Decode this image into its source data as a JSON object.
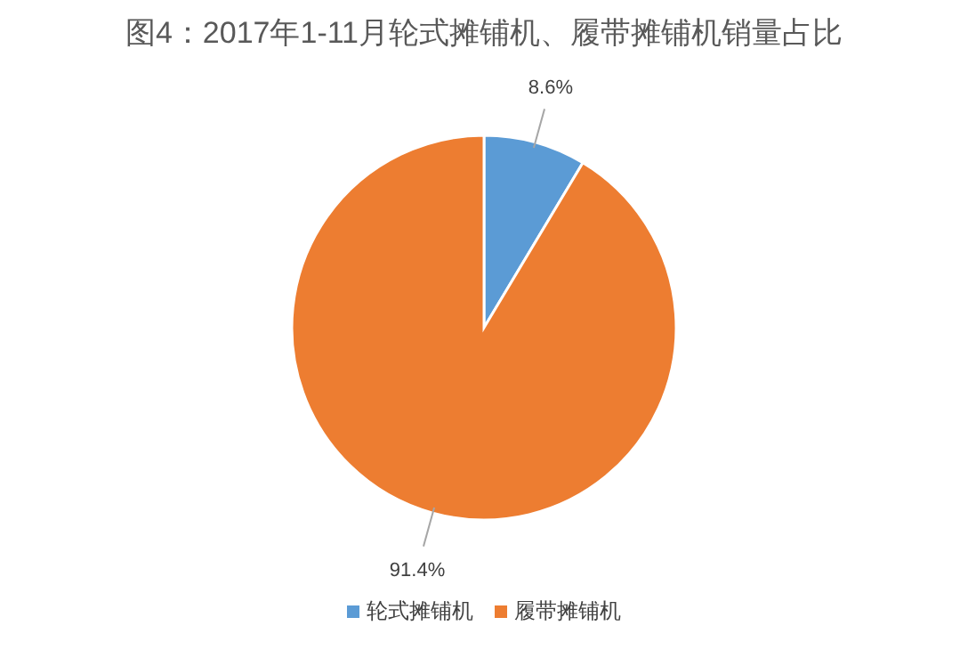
{
  "chart_data": {
    "type": "pie",
    "title": "图4：2017年1-11月轮式摊铺机、履带摊铺机销量占比",
    "categories": [
      "轮式摊铺机",
      "履带摊铺机"
    ],
    "values": [
      8.6,
      91.4
    ],
    "colors": [
      "#5b9bd5",
      "#ed7d31"
    ],
    "value_labels": [
      "8.6%",
      "91.4%"
    ],
    "legend": "bottom"
  }
}
